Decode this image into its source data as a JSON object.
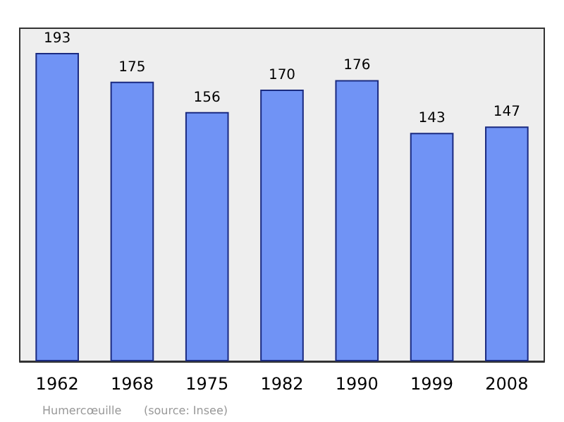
{
  "chart_data": {
    "type": "bar",
    "categories": [
      "1962",
      "1968",
      "1975",
      "1982",
      "1990",
      "1999",
      "2008"
    ],
    "values": [
      193,
      175,
      156,
      170,
      176,
      143,
      147
    ],
    "color": "#7093f5",
    "data_labels": true,
    "annotations": [
      "Humercœuille",
      "(source: Insee)"
    ]
  }
}
